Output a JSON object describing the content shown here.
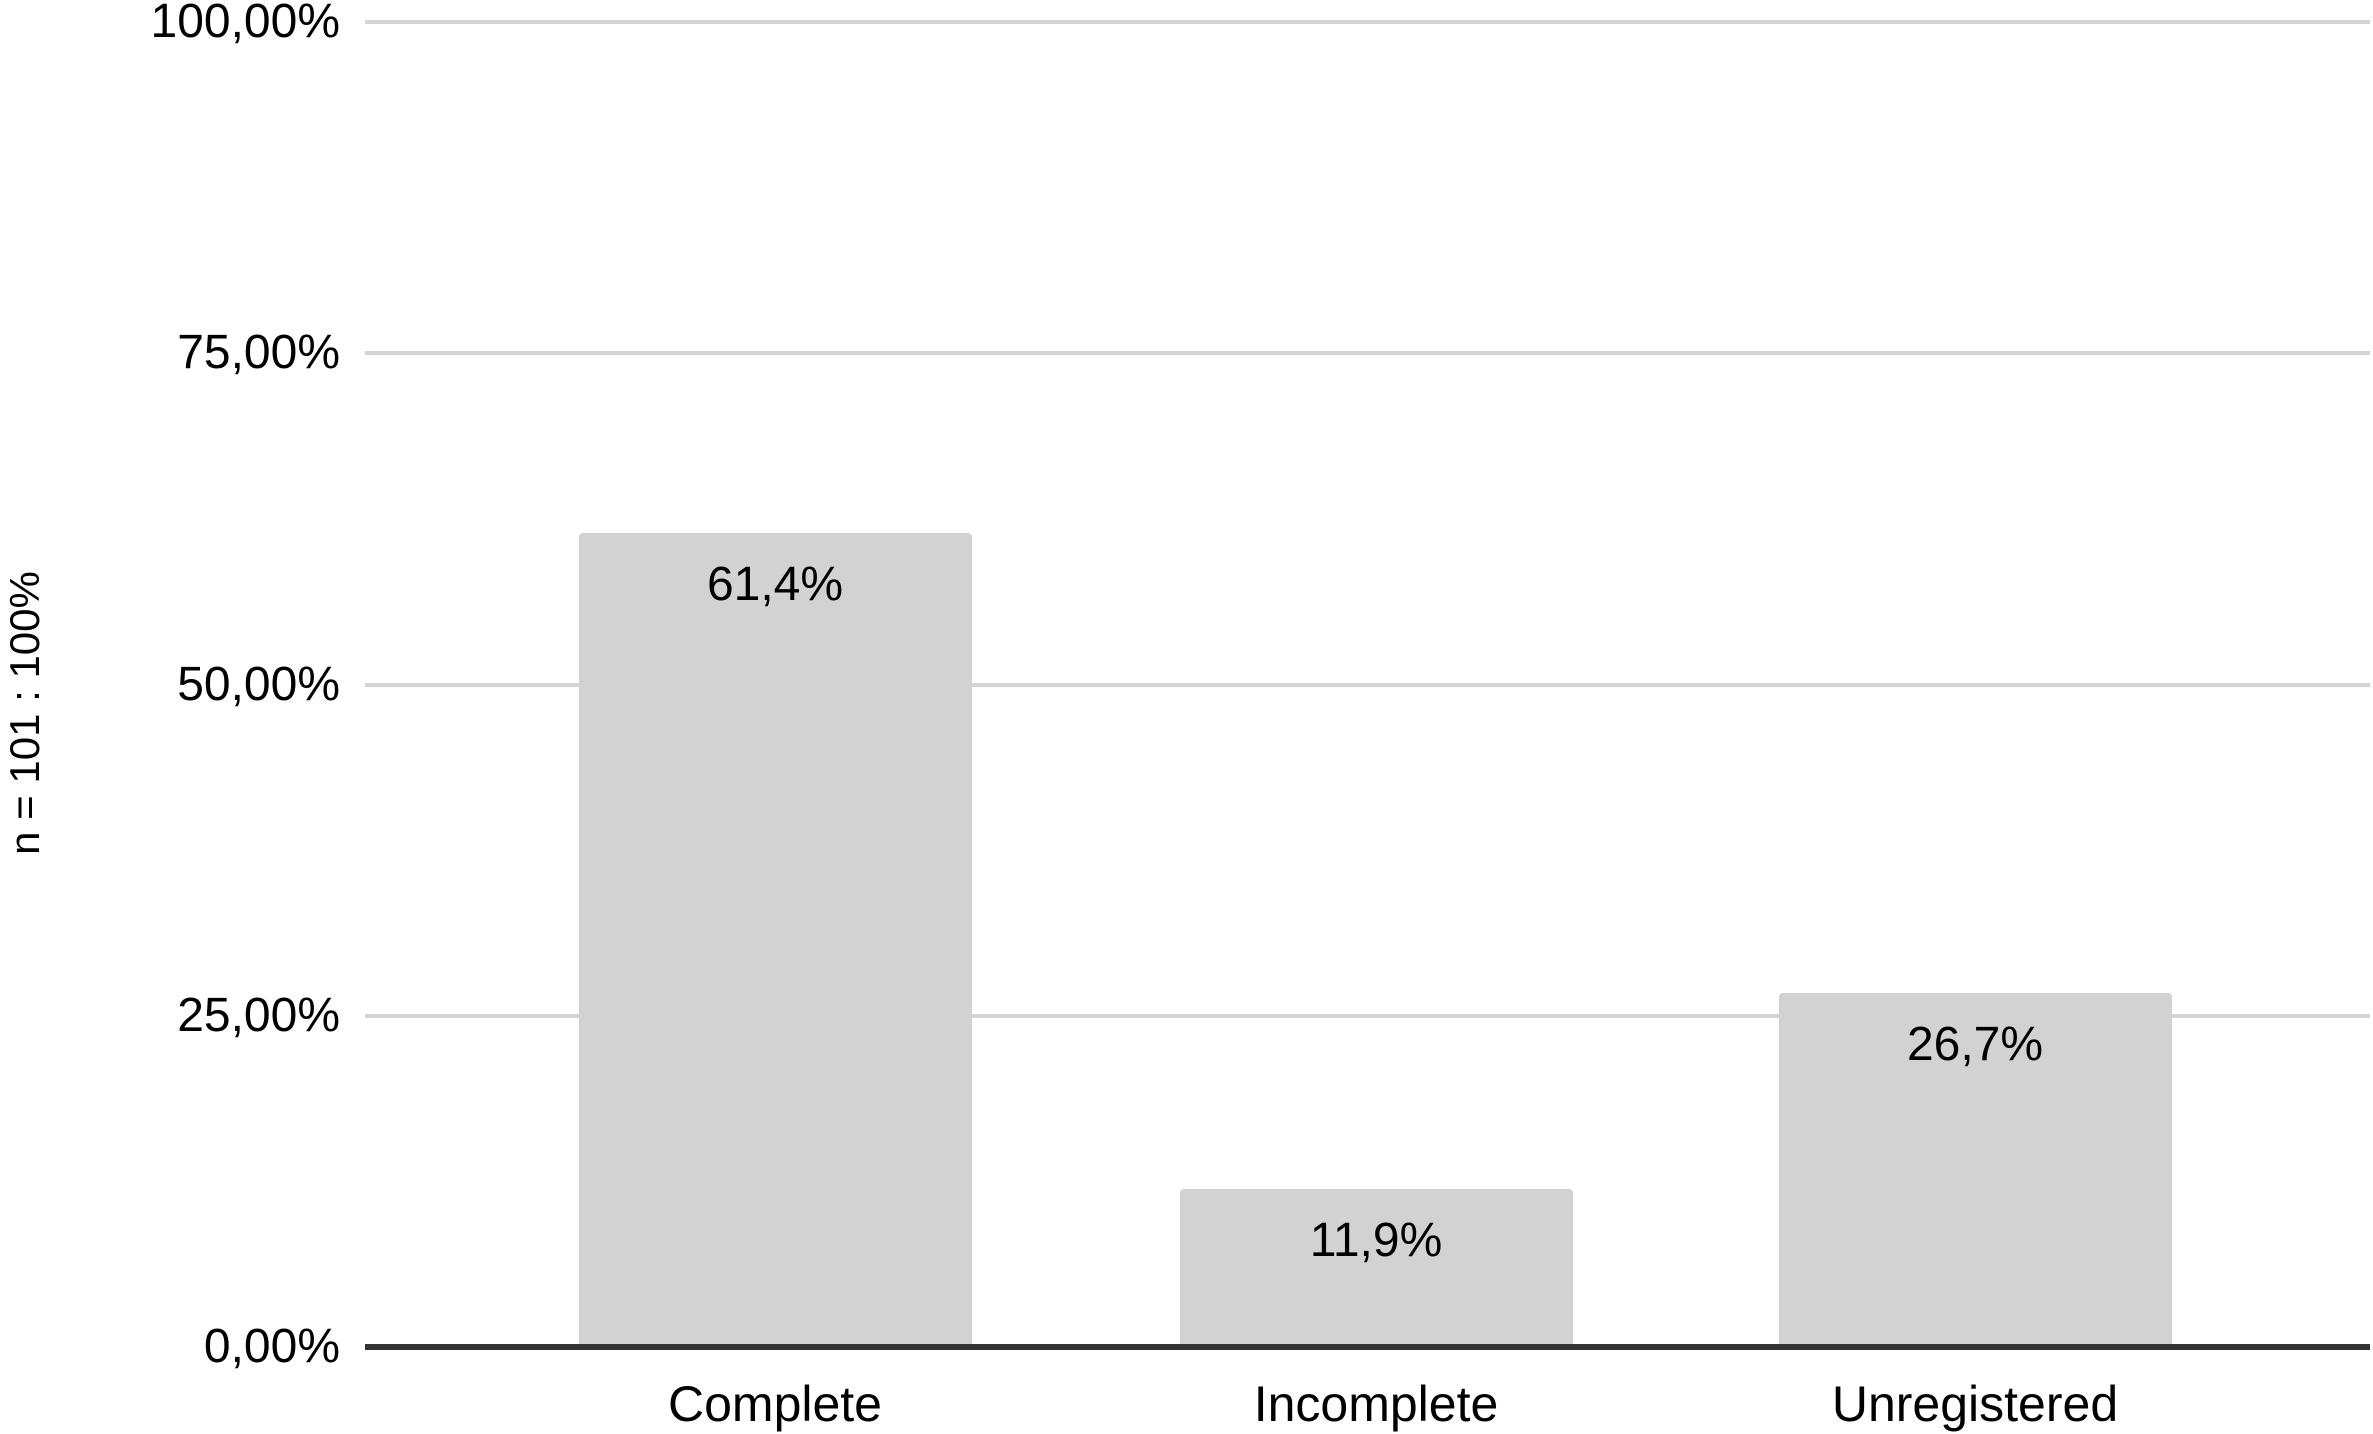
{
  "chart_data": {
    "type": "bar",
    "title": "",
    "categories": [
      "Complete",
      "Incomplete",
      "Unregistered"
    ],
    "values": [
      61.4,
      11.9,
      26.7
    ],
    "bar_labels": [
      "61,4%",
      "11,9%",
      "26,7%"
    ],
    "ylabel": "n = 101 : 100%",
    "xlabel": "",
    "ylim": [
      0,
      100
    ],
    "yticks": [
      {
        "value": 0,
        "label": "0,00%"
      },
      {
        "value": 25,
        "label": "25,00%"
      },
      {
        "value": 50,
        "label": "50,00%"
      },
      {
        "value": 75,
        "label": "75,00%"
      },
      {
        "value": 100,
        "label": "100,00%"
      }
    ],
    "grid": true,
    "legend": "none",
    "decimal_separator": ","
  },
  "colors": {
    "background": "#ffffff",
    "bar_fill": "#d2d2d2",
    "gridline": "#d5d5d5",
    "axis_line": "#333333",
    "text": "#000000"
  }
}
